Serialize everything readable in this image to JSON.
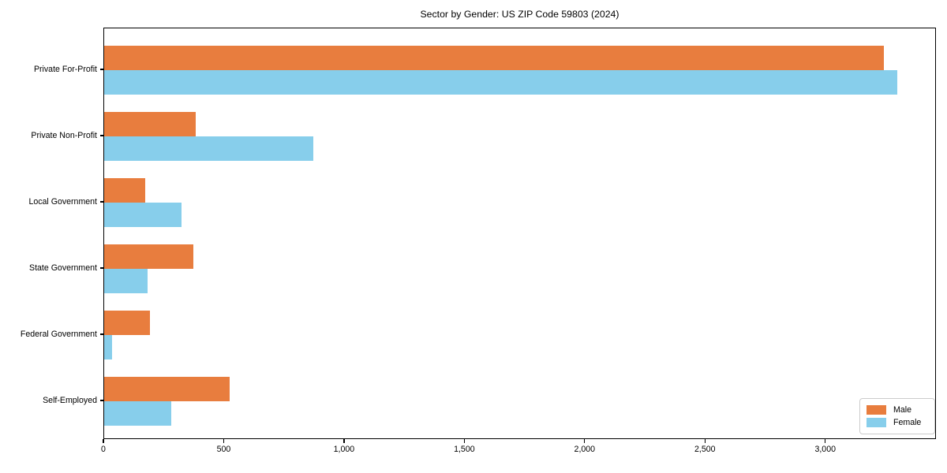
{
  "chart_data": {
    "type": "bar",
    "orientation": "horizontal",
    "title": "Sector by Gender: US ZIP Code 59803 (2024)",
    "categories": [
      "Private For-Profit",
      "Private Non-Profit",
      "Local Government",
      "State Government",
      "Federal Government",
      "Self-Employed"
    ],
    "series": [
      {
        "name": "Male",
        "color": "#E87D3E",
        "values": [
          3240,
          380,
          170,
          370,
          190,
          520
        ]
      },
      {
        "name": "Female",
        "color": "#87CEEB",
        "values": [
          3295,
          870,
          320,
          180,
          33,
          277
        ]
      }
    ],
    "xlim": [
      0,
      3460
    ],
    "xticks": [
      0,
      500,
      1000,
      1500,
      2000,
      2500,
      3000
    ],
    "xtick_labels": [
      "0",
      "500",
      "1,000",
      "1,500",
      "2,000",
      "2,500",
      "3,000"
    ],
    "xlabel": "",
    "ylabel": "",
    "grid": false,
    "plot_background": "#ffffff",
    "frame_color": "#000000",
    "legend": {
      "position": "lower right",
      "items": [
        {
          "label": "Male",
          "color": "#E87D3E"
        },
        {
          "label": "Female",
          "color": "#87CEEB"
        }
      ]
    }
  }
}
